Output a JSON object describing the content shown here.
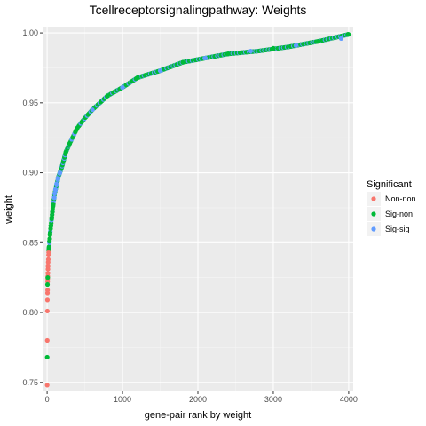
{
  "chart_data": {
    "type": "scatter",
    "title": "Tcellreceptorsignalingpathway: Weights",
    "xlabel": "gene-pair rank by weight",
    "ylabel": "weight",
    "xlim": [
      -60,
      4060
    ],
    "ylim": [
      0.7435,
      1.0045
    ],
    "x_ticks": [
      0,
      1000,
      2000,
      3000,
      4000
    ],
    "x_tick_labels": [
      "0",
      "1000",
      "2000",
      "3000",
      "4000"
    ],
    "y_ticks": [
      0.75,
      0.8,
      0.85,
      0.9,
      0.95,
      1.0
    ],
    "y_tick_labels": [
      "0.75",
      "0.80",
      "0.85",
      "0.90",
      "0.95",
      "1.00"
    ],
    "grid": true,
    "legend_position": "right",
    "legend_title": "Significant",
    "colors": {
      "Non-non": "#F8766D",
      "Sig-non": "#00BA38",
      "Sig-sig": "#619CFF",
      "panel": "#EBEBEB",
      "grid_major": "#FFFFFF",
      "grid_minor": "#F5F5F5"
    },
    "series": [
      {
        "name": "Non-non",
        "points": [
          [
            1,
            0.748
          ],
          [
            2,
            0.78
          ],
          [
            3,
            0.801
          ],
          [
            4,
            0.809
          ],
          [
            5,
            0.814
          ],
          [
            6,
            0.816
          ],
          [
            7,
            0.822
          ],
          [
            8,
            0.824
          ],
          [
            9,
            0.826
          ],
          [
            10,
            0.828
          ],
          [
            11,
            0.831
          ],
          [
            12,
            0.833
          ],
          [
            14,
            0.836
          ],
          [
            16,
            0.838
          ],
          [
            18,
            0.841
          ],
          [
            20,
            0.843
          ]
        ]
      },
      {
        "name": "Sig-non",
        "points": [
          [
            1,
            0.768
          ],
          [
            5,
            0.82
          ],
          [
            8,
            0.825
          ],
          [
            22,
            0.846
          ],
          [
            30,
            0.851
          ],
          [
            40,
            0.857
          ],
          [
            50,
            0.862
          ],
          [
            60,
            0.867
          ],
          [
            70,
            0.872
          ],
          [
            80,
            0.877
          ],
          [
            250,
            0.915
          ],
          [
            400,
            0.932
          ],
          [
            800,
            0.955
          ],
          [
            1200,
            0.968
          ],
          [
            1800,
            0.979
          ],
          [
            2400,
            0.985
          ],
          [
            3000,
            0.989
          ],
          [
            3600,
            0.994
          ],
          [
            3990,
            0.999
          ]
        ]
      },
      {
        "name": "Sig-sig",
        "points": [
          [
            95,
            0.882
          ],
          [
            100,
            0.885
          ],
          [
            110,
            0.888
          ],
          [
            125,
            0.892
          ],
          [
            145,
            0.896
          ],
          [
            170,
            0.9
          ],
          [
            600,
            0.945
          ],
          [
            1000,
            0.961
          ],
          [
            1500,
            0.973
          ],
          [
            2100,
            0.982
          ],
          [
            2700,
            0.987
          ],
          [
            3300,
            0.991
          ],
          [
            3900,
            0.996
          ]
        ]
      }
    ],
    "curve": [
      [
        1,
        0.748
      ],
      [
        3,
        0.801
      ],
      [
        6,
        0.816
      ],
      [
        10,
        0.828
      ],
      [
        20,
        0.843
      ],
      [
        40,
        0.857
      ],
      [
        60,
        0.867
      ],
      [
        80,
        0.877
      ],
      [
        100,
        0.885
      ],
      [
        150,
        0.897
      ],
      [
        200,
        0.905
      ],
      [
        250,
        0.915
      ],
      [
        300,
        0.921
      ],
      [
        400,
        0.932
      ],
      [
        500,
        0.939
      ],
      [
        600,
        0.945
      ],
      [
        800,
        0.955
      ],
      [
        1000,
        0.961
      ],
      [
        1200,
        0.968
      ],
      [
        1500,
        0.973
      ],
      [
        1800,
        0.979
      ],
      [
        2000,
        0.981
      ],
      [
        2400,
        0.985
      ],
      [
        2800,
        0.987
      ],
      [
        3200,
        0.99
      ],
      [
        3600,
        0.994
      ],
      [
        4000,
        0.999
      ]
    ]
  }
}
